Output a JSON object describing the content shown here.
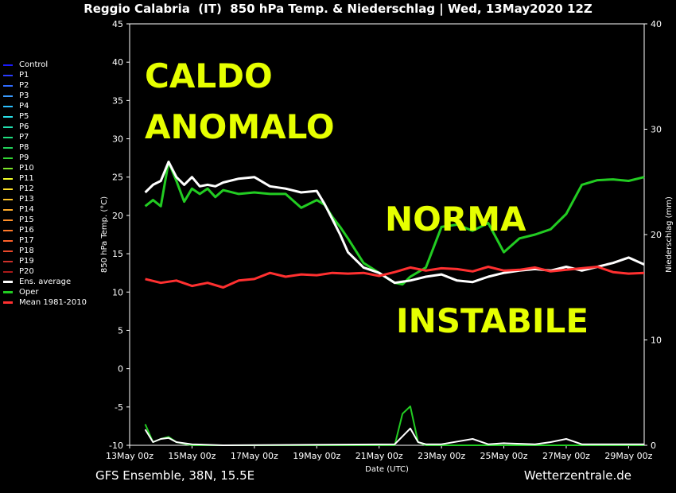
{
  "title": "Reggio Calabria  (IT)  850 hPa Temp. & Niederschlag | Wed, 13May2020 12Z",
  "footer_left": "GFS Ensemble, 38N, 15.5E",
  "footer_right": "Wetterzentrale.de",
  "overlay_texts": [
    "CALDO",
    "ANOMALO",
    "NORMA",
    "INSTABILE"
  ],
  "legend": [
    {
      "name": "Control",
      "color": "#1a1aff"
    },
    {
      "name": "P1",
      "color": "#2a3cff"
    },
    {
      "name": "P2",
      "color": "#2f6bff"
    },
    {
      "name": "P3",
      "color": "#3a9bff"
    },
    {
      "name": "P4",
      "color": "#2cc0ff"
    },
    {
      "name": "P5",
      "color": "#29e0e8"
    },
    {
      "name": "P6",
      "color": "#22e0b0"
    },
    {
      "name": "P7",
      "color": "#1fe080"
    },
    {
      "name": "P8",
      "color": "#22d25a"
    },
    {
      "name": "P9",
      "color": "#33d633"
    },
    {
      "name": "P10",
      "color": "#7ee82a"
    },
    {
      "name": "P11",
      "color": "#f4ff2a"
    },
    {
      "name": "P12",
      "color": "#ffe12a"
    },
    {
      "name": "P13",
      "color": "#ffc42a"
    },
    {
      "name": "P14",
      "color": "#ffaa2a"
    },
    {
      "name": "P15",
      "color": "#ff902a"
    },
    {
      "name": "P16",
      "color": "#ff7a2a"
    },
    {
      "name": "P17",
      "color": "#ff622a"
    },
    {
      "name": "P18",
      "color": "#e8482a"
    },
    {
      "name": "P19",
      "color": "#cc302a"
    },
    {
      "name": "P20",
      "color": "#aa1a1a"
    },
    {
      "name": "Ens. average",
      "color": "#ffffff"
    },
    {
      "name": "Oper",
      "color": "#22cc22"
    },
    {
      "name": "Mean 1981-2010",
      "color": "#ff3030"
    }
  ],
  "chart_data": {
    "type": "line",
    "xlabel": "Date (UTC)",
    "ylabel": "850 hPa Temp. (°C)",
    "ylabel_right": "Niederschlag (mm)",
    "ylim": [
      -10,
      45
    ],
    "ylim_right": [
      0,
      40
    ],
    "yticks": [
      -10,
      -5,
      0,
      5,
      10,
      15,
      20,
      25,
      30,
      35,
      40,
      45
    ],
    "yticks_right": [
      0,
      10,
      20,
      30,
      40
    ],
    "xticks": [
      "13May 00z",
      "15May 00z",
      "17May 00z",
      "19May 00z",
      "21May 00z",
      "23May 00z",
      "25May 00z",
      "27May 00z",
      "29May 00z"
    ],
    "x_day_range": [
      13,
      29.5
    ],
    "series": [
      {
        "name": "Oper",
        "color": "#22cc22",
        "x": [
          13.5,
          13.75,
          14,
          14.25,
          14.5,
          14.75,
          15,
          15.25,
          15.5,
          15.75,
          16,
          16.5,
          17,
          17.5,
          18,
          18.5,
          19,
          19.25,
          19.5,
          19.75,
          20,
          20.5,
          21,
          21.5,
          21.75,
          22,
          22.5,
          23,
          23.5,
          24,
          24.5,
          25,
          25.5,
          26,
          26.5,
          27,
          27.5,
          28,
          28.5,
          29,
          29.5
        ],
        "y": [
          21.2,
          22,
          21.2,
          27,
          24.5,
          21.8,
          23.5,
          22.8,
          23.5,
          22.4,
          23.3,
          22.8,
          23,
          22.8,
          22.8,
          21,
          22,
          21.4,
          19.8,
          18.5,
          17,
          13.8,
          12.5,
          11.2,
          11,
          12,
          13.2,
          18.5,
          18.8,
          18,
          19,
          15.2,
          17,
          17.5,
          18.2,
          20.2,
          24,
          24.6,
          24.7,
          24.5,
          25
        ]
      },
      {
        "name": "Ens. average",
        "color": "#ffffff",
        "x": [
          13.5,
          13.75,
          14,
          14.25,
          14.5,
          14.75,
          15,
          15.25,
          15.5,
          15.75,
          16,
          16.5,
          17,
          17.5,
          18,
          18.5,
          19,
          19.25,
          19.5,
          19.75,
          20,
          20.5,
          21,
          21.5,
          22,
          22.5,
          23,
          23.5,
          24,
          24.5,
          25,
          25.5,
          26,
          26.5,
          27,
          27.5,
          28,
          28.5,
          29,
          29.5
        ],
        "y": [
          23,
          24,
          24.5,
          27,
          25,
          24,
          25,
          23.8,
          24,
          23.8,
          24.3,
          24.8,
          25,
          23.8,
          23.5,
          23,
          23.2,
          21.5,
          19.5,
          17.5,
          15.2,
          13.2,
          12.5,
          11.2,
          11.5,
          12,
          12.3,
          11.5,
          11.3,
          12,
          12.5,
          12.8,
          13,
          12.8,
          13.3,
          12.8,
          13.3,
          13.8,
          14.5,
          13.6
        ]
      },
      {
        "name": "Mean 1981-2010",
        "color": "#ff3030",
        "x": [
          13.5,
          14,
          14.5,
          15,
          15.5,
          16,
          16.5,
          17,
          17.5,
          18,
          18.5,
          19,
          19.5,
          20,
          20.5,
          21,
          21.5,
          22,
          22.5,
          23,
          23.5,
          24,
          24.5,
          25,
          25.5,
          26,
          26.5,
          27,
          27.5,
          28,
          28.5,
          29,
          29.5
        ],
        "y": [
          11.7,
          11.2,
          11.5,
          10.8,
          11.2,
          10.6,
          11.5,
          11.7,
          12.5,
          12,
          12.3,
          12.2,
          12.5,
          12.4,
          12.5,
          12.1,
          12.6,
          13.2,
          12.8,
          13.1,
          13,
          12.7,
          13.3,
          12.8,
          12.9,
          13.2,
          12.7,
          12.9,
          13.1,
          13.3,
          12.6,
          12.4,
          12.5
        ]
      }
    ],
    "precip_series": [
      {
        "name": "Oper",
        "color": "#22cc22",
        "x": [
          13.5,
          13.75,
          14,
          14.25,
          14.5,
          15,
          16,
          21.5,
          21.75,
          22,
          22.25,
          22.5,
          23,
          24,
          28,
          29.5
        ],
        "y": [
          2,
          0.3,
          0.6,
          0.8,
          0.3,
          0,
          0,
          0,
          3,
          3.7,
          0.3,
          0,
          0,
          0,
          0,
          0
        ]
      },
      {
        "name": "Ens. average",
        "color": "#ffffff",
        "x": [
          13.5,
          13.75,
          14,
          14.25,
          14.5,
          15,
          16,
          21.5,
          22,
          22.25,
          22.5,
          23,
          24,
          24.5,
          25,
          26,
          26.5,
          27,
          27.5,
          28,
          29.5
        ],
        "y": [
          1.5,
          0.3,
          0.6,
          0.7,
          0.3,
          0.1,
          0,
          0.1,
          1.6,
          0.3,
          0.1,
          0.1,
          0.6,
          0.1,
          0.2,
          0.1,
          0.3,
          0.6,
          0.1,
          0.1,
          0.1
        ]
      }
    ]
  }
}
